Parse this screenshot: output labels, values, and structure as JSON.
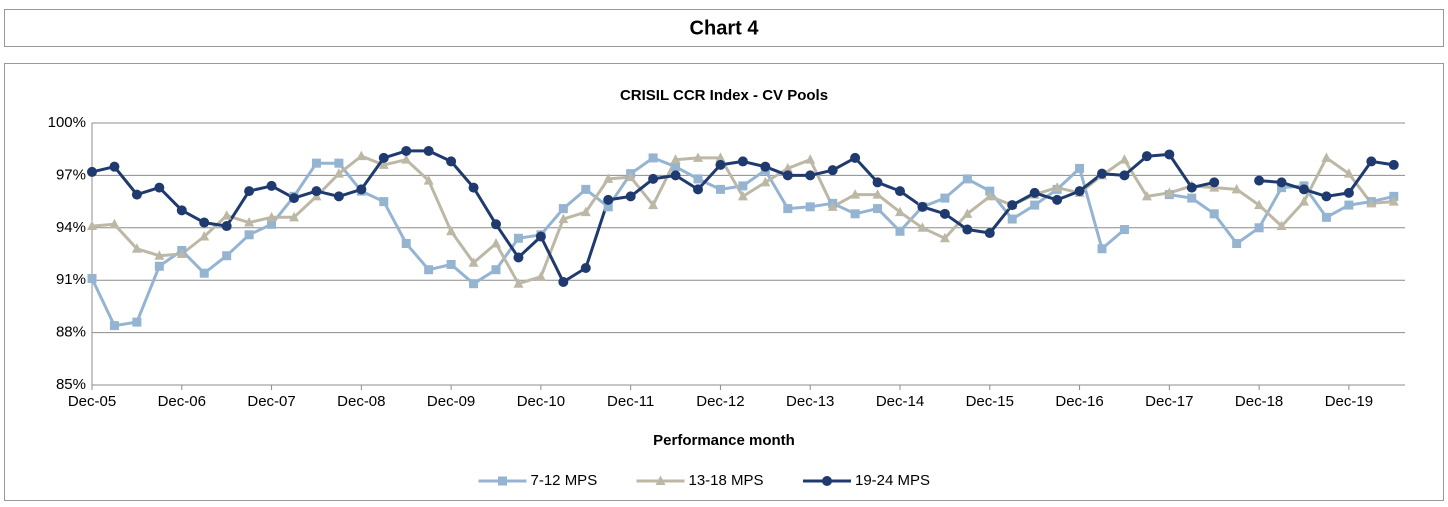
{
  "header": {
    "title": "Chart 4"
  },
  "chart_data": {
    "type": "line",
    "title": "CRISIL CCR Index - CV Pools",
    "x_label": "Performance month",
    "categories": [
      "Dec-05",
      null,
      null,
      null,
      "Dec-06",
      null,
      null,
      null,
      "Dec-07",
      null,
      null,
      null,
      "Dec-08",
      null,
      null,
      null,
      "Dec-09",
      null,
      null,
      null,
      "Dec-10",
      null,
      null,
      null,
      "Dec-11",
      null,
      null,
      null,
      "Dec-12",
      null,
      null,
      null,
      "Dec-13",
      null,
      null,
      null,
      "Dec-14",
      null,
      null,
      null,
      "Dec-15",
      null,
      null,
      null,
      "Dec-16",
      null,
      null,
      null,
      "Dec-17",
      null,
      null,
      null,
      "Dec-18",
      null,
      null,
      null,
      "Dec-19",
      null,
      null
    ],
    "ylim": [
      85,
      100
    ],
    "yticks": [
      {
        "value": 85,
        "label": "85%"
      },
      {
        "value": 88,
        "label": "88%"
      },
      {
        "value": 91,
        "label": "91%"
      },
      {
        "value": 94,
        "label": "94%"
      },
      {
        "value": 97,
        "label": "97%"
      },
      {
        "value": 100,
        "label": "100%"
      }
    ],
    "grid": true,
    "legend": "bottom",
    "series": [
      {
        "name": "7-12 MPS",
        "color": "#94b4d2",
        "marker": "square",
        "values": [
          91.1,
          88.4,
          88.6,
          91.8,
          92.7,
          91.4,
          92.4,
          93.6,
          94.2,
          95.8,
          97.7,
          97.7,
          96.1,
          95.5,
          93.1,
          91.6,
          91.9,
          90.8,
          91.6,
          93.4,
          93.6,
          95.1,
          96.2,
          95.2,
          97.1,
          98.0,
          97.5,
          96.8,
          96.2,
          96.4,
          97.3,
          95.1,
          95.2,
          95.4,
          94.8,
          95.1,
          93.8,
          95.2,
          95.7,
          96.8,
          96.1,
          94.5,
          95.3,
          96.2,
          97.4,
          92.8,
          93.9,
          null,
          95.9,
          95.7,
          94.8,
          93.1,
          94.0,
          96.3,
          96.4,
          94.6,
          95.3,
          95.5,
          95.8
        ]
      },
      {
        "name": "13-18 MPS",
        "color": "#bdb8a6",
        "marker": "triangle",
        "values": [
          94.1,
          94.2,
          92.8,
          92.4,
          92.5,
          93.5,
          94.7,
          94.3,
          94.6,
          94.6,
          95.8,
          97.1,
          98.1,
          97.6,
          97.9,
          96.7,
          93.8,
          92.0,
          93.1,
          90.8,
          91.2,
          94.5,
          94.9,
          96.8,
          96.9,
          95.3,
          97.9,
          98.0,
          98.0,
          95.8,
          96.6,
          97.4,
          97.9,
          95.2,
          95.9,
          95.9,
          94.9,
          94.0,
          93.4,
          94.8,
          95.8,
          95.3,
          95.9,
          96.3,
          96.0,
          97.0,
          97.9,
          95.8,
          96.0,
          96.4,
          96.3,
          96.2,
          95.3,
          94.1,
          95.5,
          98.0,
          97.1,
          95.4,
          95.5
        ]
      },
      {
        "name": "19-24 MPS",
        "color": "#1f3a6e",
        "marker": "circle",
        "values": [
          97.2,
          97.5,
          95.9,
          96.3,
          95.0,
          94.3,
          94.1,
          96.1,
          96.4,
          95.7,
          96.1,
          95.8,
          96.2,
          98.0,
          98.4,
          98.4,
          97.8,
          96.3,
          94.2,
          92.3,
          93.5,
          90.9,
          91.7,
          95.6,
          95.8,
          96.8,
          97.0,
          96.2,
          97.6,
          97.8,
          97.5,
          97.0,
          97.0,
          97.3,
          98.0,
          96.6,
          96.1,
          95.2,
          94.8,
          93.9,
          93.7,
          95.3,
          96.0,
          95.6,
          96.1,
          97.1,
          97.0,
          98.1,
          98.2,
          96.3,
          96.6,
          null,
          96.7,
          96.6,
          96.2,
          95.8,
          96.0,
          97.8,
          97.6
        ]
      }
    ]
  }
}
